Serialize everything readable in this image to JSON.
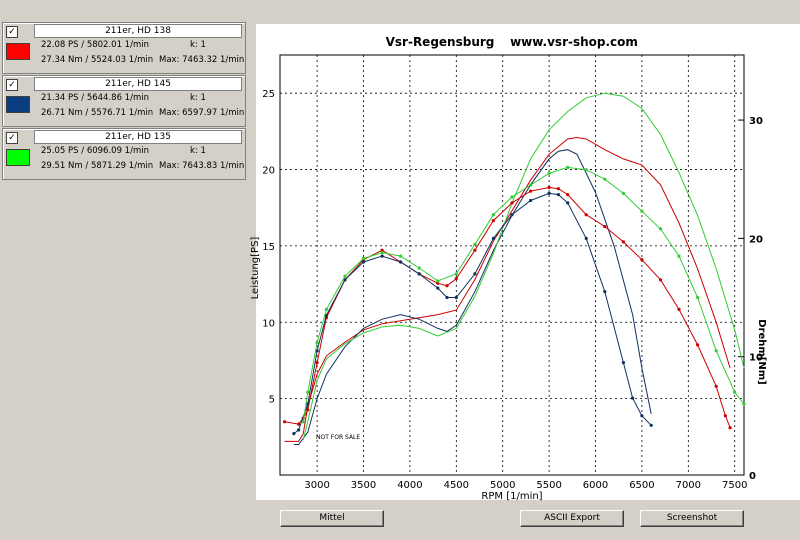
{
  "panels": [
    {
      "title": "211er, HD 138",
      "ps": "22.08 PS / 5802.01 1/min",
      "nm": "27.34 Nm / 5524.03 1/min",
      "k": "k: 1",
      "max": "Max: 7463.32 1/min",
      "color": "#ff0000"
    },
    {
      "title": "211er, HD 145",
      "ps": "21.34 PS / 5644.86 1/min",
      "nm": "26.71 Nm / 5576.71 1/min",
      "k": "k: 1",
      "max": "Max: 6597.97 1/min",
      "color": "#0a3d80"
    },
    {
      "title": "211er, HD 135",
      "ps": "25.05 PS / 6096.09 1/min",
      "nm": "29.51 Nm / 5871.29 1/min",
      "k": "k: 1",
      "max": "Max: 7643.83 1/min",
      "color": "#00ff00"
    }
  ],
  "checkbox_mark": "✓",
  "buttons": {
    "mittel": "Mittel",
    "ascii": "ASCII Export",
    "screenshot": "Screenshot"
  },
  "watermark": "NOT FOR SALE",
  "chart_data": {
    "type": "line",
    "title": "Vsr-Regensburg",
    "subtitle": "www.vsr-shop.com",
    "xlabel": "RPM [1/min]",
    "ylabel": "Leistung[PS]",
    "y2label": "Drehm[Nm]",
    "xlim": [
      2600,
      7600
    ],
    "ylim": [
      0,
      27.5
    ],
    "y2lim": [
      0,
      35.5
    ],
    "xticks": [
      3000,
      3500,
      4000,
      4500,
      5000,
      5500,
      6000,
      6500,
      7000,
      7500
    ],
    "yticks": [
      5,
      10,
      15,
      20,
      25
    ],
    "y2ticks": [
      0,
      10,
      20,
      30
    ],
    "grid": true,
    "series": [
      {
        "name": "211er, HD 138",
        "quantity": "power",
        "color": "#cc0000",
        "x": [
          2650,
          2800,
          2850,
          2900,
          3000,
          3100,
          3300,
          3500,
          3700,
          3900,
          4100,
          4300,
          4500,
          4700,
          4900,
          5100,
          5300,
          5500,
          5700,
          5800,
          5900,
          6100,
          6300,
          6500,
          6700,
          6900,
          7100,
          7300,
          7400,
          7450
        ],
        "y": [
          2.2,
          2.2,
          2.7,
          4.5,
          6.6,
          7.8,
          8.7,
          9.5,
          9.9,
          10.1,
          10.3,
          10.5,
          10.8,
          12.8,
          15.3,
          17.3,
          19.3,
          21.0,
          22.0,
          22.1,
          22.0,
          21.3,
          20.7,
          20.3,
          19.0,
          16.5,
          13.5,
          10.0,
          8.0,
          7.0
        ]
      },
      {
        "name": "211er, HD 145",
        "quantity": "power",
        "color": "#103060",
        "x": [
          2750,
          2800,
          2900,
          3000,
          3100,
          3300,
          3500,
          3700,
          3900,
          4100,
          4300,
          4400,
          4500,
          4700,
          4900,
          5100,
          5300,
          5500,
          5600,
          5700,
          5800,
          6000,
          6200,
          6400,
          6500,
          6600
        ],
        "y": [
          2.0,
          2.0,
          2.8,
          5.0,
          6.6,
          8.4,
          9.6,
          10.2,
          10.5,
          10.2,
          9.6,
          9.4,
          9.8,
          12.0,
          14.7,
          17.0,
          19.0,
          20.7,
          21.2,
          21.3,
          21.0,
          18.5,
          15.0,
          10.5,
          7.0,
          4.0
        ]
      },
      {
        "name": "211er, HD 135",
        "quantity": "power",
        "color": "#33cc33",
        "x": [
          2850,
          2900,
          3000,
          3100,
          3300,
          3500,
          3700,
          3900,
          4100,
          4300,
          4500,
          4700,
          4900,
          5100,
          5300,
          5500,
          5700,
          5900,
          6100,
          6300,
          6500,
          6700,
          6900,
          7100,
          7300,
          7500,
          7600
        ],
        "y": [
          2.3,
          3.5,
          6.2,
          7.6,
          8.6,
          9.3,
          9.7,
          9.8,
          9.6,
          9.1,
          9.6,
          11.7,
          14.5,
          17.8,
          20.7,
          22.6,
          23.8,
          24.7,
          25.0,
          24.8,
          24.0,
          22.3,
          19.8,
          17.0,
          13.5,
          9.5,
          7.0
        ]
      },
      {
        "name": "211er, HD 138",
        "quantity": "torque",
        "color": "#cc0000",
        "x": [
          2650,
          2800,
          2850,
          2900,
          3000,
          3100,
          3300,
          3500,
          3700,
          3900,
          4100,
          4300,
          4400,
          4500,
          4700,
          4900,
          5100,
          5300,
          5500,
          5600,
          5700,
          5900,
          6100,
          6300,
          6500,
          6700,
          6900,
          7100,
          7300,
          7400,
          7450
        ],
        "y": [
          4.5,
          4.3,
          4.8,
          5.5,
          9.5,
          13.3,
          16.5,
          18.2,
          19.0,
          18.0,
          17.0,
          16.2,
          16.0,
          16.6,
          19.0,
          21.5,
          23.0,
          24.0,
          24.3,
          24.2,
          23.7,
          22.0,
          21.0,
          19.7,
          18.2,
          16.5,
          14.0,
          11.0,
          7.5,
          5.0,
          4.0
        ]
      },
      {
        "name": "211er, HD 145",
        "quantity": "torque",
        "color": "#103060",
        "x": [
          2750,
          2800,
          2900,
          3000,
          3100,
          3300,
          3500,
          3700,
          3900,
          4100,
          4300,
          4400,
          4500,
          4700,
          4900,
          5100,
          5300,
          5500,
          5600,
          5700,
          5900,
          6100,
          6300,
          6400,
          6500,
          6600
        ],
        "y": [
          3.5,
          3.8,
          6.0,
          10.5,
          13.5,
          16.5,
          18.0,
          18.5,
          18.0,
          17.0,
          15.8,
          15.0,
          15.0,
          17.0,
          20.0,
          22.0,
          23.2,
          23.8,
          23.7,
          23.0,
          20.0,
          15.5,
          9.5,
          6.5,
          5.0,
          4.2
        ]
      },
      {
        "name": "211er, HD 135",
        "quantity": "torque",
        "color": "#33cc33",
        "x": [
          2850,
          2900,
          3000,
          3100,
          3300,
          3500,
          3700,
          3900,
          4100,
          4300,
          4500,
          4700,
          4900,
          5100,
          5300,
          5500,
          5700,
          5900,
          6100,
          6300,
          6500,
          6700,
          6900,
          7100,
          7300,
          7500,
          7600
        ],
        "y": [
          4.5,
          7.0,
          11.2,
          14.0,
          16.8,
          18.3,
          18.8,
          18.5,
          17.5,
          16.4,
          17.0,
          19.5,
          22.0,
          23.5,
          24.5,
          25.5,
          26.0,
          25.8,
          25.0,
          23.8,
          22.3,
          20.8,
          18.5,
          15.0,
          10.5,
          7.0,
          6.0
        ]
      }
    ]
  }
}
